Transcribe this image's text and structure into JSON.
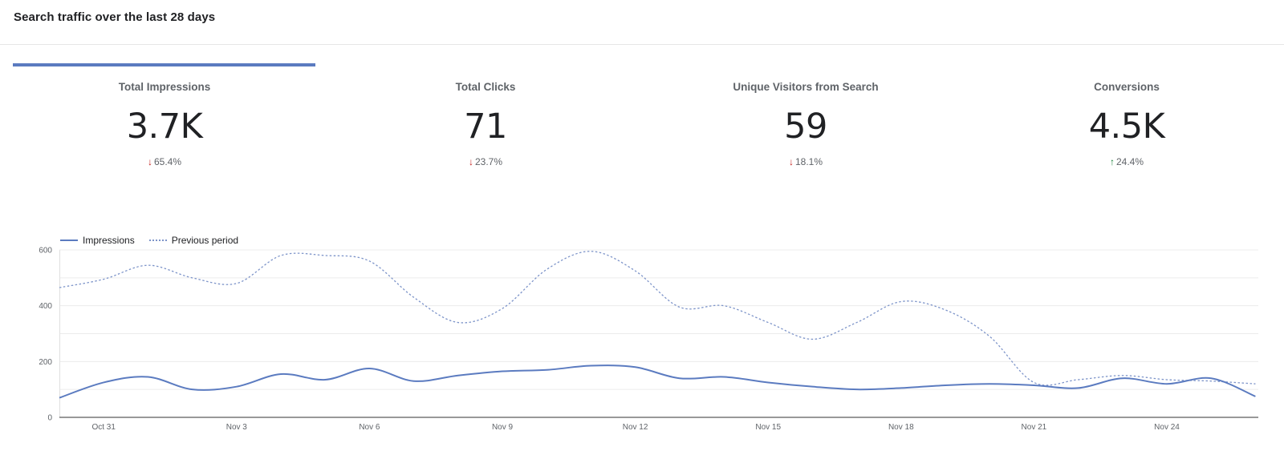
{
  "header": {
    "title": "Search traffic over the last 28 days"
  },
  "kpis": [
    {
      "label": "Total Impressions",
      "value": "3.7K",
      "delta": "65.4%",
      "direction": "down"
    },
    {
      "label": "Total Clicks",
      "value": "71",
      "delta": "23.7%",
      "direction": "down"
    },
    {
      "label": "Unique Visitors from Search",
      "value": "59",
      "delta": "18.1%",
      "direction": "down"
    },
    {
      "label": "Conversions",
      "value": "4.5K",
      "delta": "24.4%",
      "direction": "up"
    }
  ],
  "colors": {
    "accent": "#5b7bc0",
    "down": "#c5221f",
    "up": "#188038"
  },
  "chart_data": {
    "type": "line",
    "legend": "top-left",
    "ylim": [
      0,
      600
    ],
    "yticks": [
      0,
      200,
      400,
      600
    ],
    "grid": true,
    "x": [
      "Oct 30",
      "Oct 31",
      "Nov 1",
      "Nov 2",
      "Nov 3",
      "Nov 4",
      "Nov 5",
      "Nov 6",
      "Nov 7",
      "Nov 8",
      "Nov 9",
      "Nov 10",
      "Nov 11",
      "Nov 12",
      "Nov 13",
      "Nov 14",
      "Nov 15",
      "Nov 16",
      "Nov 17",
      "Nov 18",
      "Nov 19",
      "Nov 20",
      "Nov 21",
      "Nov 22",
      "Nov 23",
      "Nov 24",
      "Nov 25",
      "Nov 26"
    ],
    "xtick_labels": [
      "Oct 31",
      "Nov 3",
      "Nov 6",
      "Nov 9",
      "Nov 12",
      "Nov 15",
      "Nov 18",
      "Nov 21",
      "Nov 24"
    ],
    "series": [
      {
        "name": "Impressions",
        "style": "solid",
        "values": [
          70,
          125,
          145,
          100,
          110,
          155,
          135,
          175,
          130,
          150,
          165,
          170,
          185,
          180,
          140,
          145,
          125,
          110,
          100,
          105,
          115,
          120,
          115,
          105,
          140,
          120,
          140,
          75
        ]
      },
      {
        "name": "Previous period",
        "style": "dotted",
        "values": [
          465,
          495,
          545,
          500,
          480,
          580,
          580,
          560,
          430,
          340,
          390,
          530,
          595,
          525,
          395,
          400,
          340,
          280,
          340,
          415,
          385,
          290,
          125,
          135,
          150,
          135,
          130,
          120
        ]
      }
    ]
  }
}
